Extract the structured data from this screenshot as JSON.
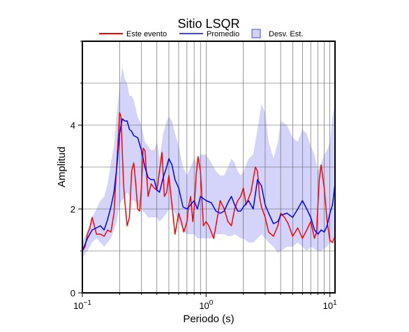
{
  "chart_data": {
    "type": "line",
    "title": "Sitio LSQR",
    "xlabel": "Periodo (s)",
    "ylabel": "Amplitud",
    "xscale": "log",
    "xlim": [
      0.1,
      11
    ],
    "ylim": [
      0,
      6
    ],
    "x_ticks": [
      {
        "value": 0.1,
        "base": "10",
        "exp": "−1"
      },
      {
        "value": 1,
        "base": "10",
        "exp": "0"
      },
      {
        "value": 10,
        "base": "10",
        "exp": "1"
      }
    ],
    "y_ticks": [
      {
        "value": 0,
        "label": "0"
      },
      {
        "value": 2,
        "label": "2"
      },
      {
        "value": 4,
        "label": "4"
      }
    ],
    "grid": true,
    "legend_position": "top",
    "colors": {
      "evento": "#ff0000",
      "promedio": "#0000ff",
      "desv": "#d4d4fa",
      "desv_edge": "#4646ff"
    },
    "series": [
      {
        "name": "Este evento",
        "kind": "line",
        "x": [
          0.1,
          0.105,
          0.11,
          0.115,
          0.12,
          0.125,
          0.13,
          0.14,
          0.15,
          0.16,
          0.17,
          0.18,
          0.19,
          0.2,
          0.205,
          0.21,
          0.215,
          0.22,
          0.23,
          0.24,
          0.25,
          0.26,
          0.27,
          0.28,
          0.29,
          0.3,
          0.31,
          0.32,
          0.34,
          0.36,
          0.38,
          0.4,
          0.42,
          0.44,
          0.46,
          0.48,
          0.5,
          0.53,
          0.56,
          0.6,
          0.63,
          0.66,
          0.7,
          0.72,
          0.75,
          0.78,
          0.8,
          0.83,
          0.86,
          0.9,
          0.95,
          1.0,
          1.05,
          1.1,
          1.15,
          1.2,
          1.3,
          1.4,
          1.5,
          1.6,
          1.7,
          1.8,
          1.9,
          2.0,
          2.1,
          2.3,
          2.5,
          2.6,
          2.7,
          2.8,
          3.0,
          3.2,
          3.5,
          3.8,
          4.0,
          4.3,
          4.6,
          5.0,
          5.5,
          6.0,
          6.5,
          7.0,
          7.5,
          7.8,
          8.2,
          8.5,
          9.0,
          9.5,
          10.0,
          10.5,
          11.0
        ],
        "y": [
          1.0,
          1.1,
          1.4,
          1.55,
          1.8,
          1.6,
          1.4,
          1.4,
          1.35,
          1.5,
          1.45,
          1.9,
          3.1,
          4.3,
          4.2,
          3.4,
          2.6,
          2.2,
          1.6,
          1.8,
          2.9,
          3.1,
          2.6,
          2.0,
          1.95,
          2.5,
          3.45,
          3.4,
          2.3,
          2.6,
          2.5,
          2.45,
          2.9,
          3.35,
          2.3,
          2.4,
          2.8,
          2.1,
          1.4,
          1.9,
          1.7,
          1.45,
          1.7,
          2.05,
          2.3,
          1.7,
          2.0,
          2.8,
          3.25,
          2.9,
          1.6,
          1.7,
          1.6,
          1.45,
          1.3,
          1.6,
          2.2,
          2.0,
          1.7,
          1.6,
          2.0,
          2.2,
          2.3,
          2.5,
          2.1,
          2.4,
          3.0,
          2.9,
          2.3,
          2.05,
          1.8,
          1.45,
          1.35,
          1.6,
          1.9,
          1.8,
          1.65,
          1.35,
          1.55,
          1.3,
          1.5,
          1.7,
          1.3,
          1.45,
          2.7,
          3.05,
          2.5,
          1.7,
          1.25,
          1.2,
          1.35
        ]
      },
      {
        "name": "Promedio",
        "kind": "line",
        "x": [
          0.1,
          0.11,
          0.12,
          0.13,
          0.14,
          0.15,
          0.16,
          0.17,
          0.18,
          0.19,
          0.2,
          0.21,
          0.22,
          0.23,
          0.24,
          0.25,
          0.26,
          0.28,
          0.3,
          0.32,
          0.34,
          0.36,
          0.38,
          0.4,
          0.42,
          0.45,
          0.48,
          0.5,
          0.53,
          0.56,
          0.6,
          0.65,
          0.7,
          0.75,
          0.8,
          0.85,
          0.9,
          1.0,
          1.1,
          1.2,
          1.3,
          1.4,
          1.5,
          1.6,
          1.7,
          1.8,
          1.9,
          2.0,
          2.2,
          2.4,
          2.6,
          2.8,
          3.0,
          3.2,
          3.5,
          3.8,
          4.0,
          4.5,
          5.0,
          5.5,
          6.0,
          6.5,
          7.0,
          7.5,
          8.0,
          8.5,
          9.0,
          9.5,
          10.0,
          10.5,
          11.0
        ],
        "y": [
          1.0,
          1.3,
          1.5,
          1.55,
          1.6,
          1.5,
          1.75,
          2.05,
          2.4,
          3.0,
          3.8,
          4.15,
          4.1,
          4.1,
          3.9,
          3.85,
          3.75,
          3.7,
          3.4,
          3.0,
          2.75,
          2.7,
          2.7,
          2.45,
          2.4,
          2.75,
          3.0,
          3.2,
          3.05,
          2.7,
          2.5,
          2.05,
          2.0,
          2.1,
          2.2,
          2.0,
          2.3,
          2.2,
          2.15,
          1.95,
          1.9,
          1.95,
          2.15,
          2.3,
          2.1,
          1.95,
          1.95,
          2.05,
          2.2,
          2.0,
          2.7,
          2.55,
          2.1,
          1.9,
          1.65,
          1.7,
          1.85,
          1.9,
          1.8,
          2.0,
          2.2,
          2.0,
          1.8,
          1.5,
          1.4,
          1.5,
          1.45,
          1.6,
          1.9,
          2.1,
          2.6
        ]
      },
      {
        "name": "Desv. Est.",
        "kind": "band",
        "x": [
          0.1,
          0.11,
          0.12,
          0.13,
          0.14,
          0.15,
          0.16,
          0.17,
          0.18,
          0.19,
          0.2,
          0.21,
          0.22,
          0.23,
          0.24,
          0.25,
          0.26,
          0.28,
          0.3,
          0.32,
          0.34,
          0.36,
          0.38,
          0.4,
          0.42,
          0.45,
          0.48,
          0.5,
          0.53,
          0.56,
          0.6,
          0.65,
          0.7,
          0.75,
          0.8,
          0.85,
          0.9,
          1.0,
          1.1,
          1.2,
          1.3,
          1.4,
          1.5,
          1.6,
          1.7,
          1.8,
          1.9,
          2.0,
          2.2,
          2.4,
          2.6,
          2.8,
          3.0,
          3.2,
          3.5,
          3.8,
          4.0,
          4.5,
          5.0,
          5.5,
          6.0,
          6.5,
          7.0,
          7.5,
          8.0,
          8.5,
          9.0,
          9.5,
          10.0,
          10.5,
          11.0
        ],
        "upper": [
          1.2,
          1.5,
          1.8,
          2.0,
          2.2,
          2.3,
          2.6,
          3.1,
          3.5,
          4.3,
          4.9,
          5.4,
          5.1,
          5.0,
          4.7,
          4.7,
          4.6,
          4.2,
          4.0,
          3.6,
          3.5,
          3.4,
          3.4,
          3.6,
          3.2,
          3.8,
          4.1,
          4.2,
          4.1,
          3.8,
          3.5,
          3.0,
          2.8,
          3.0,
          3.2,
          3.1,
          3.3,
          3.3,
          3.1,
          2.9,
          2.8,
          2.8,
          3.0,
          3.2,
          3.1,
          2.9,
          2.8,
          2.9,
          3.2,
          3.3,
          3.9,
          4.5,
          4.3,
          3.6,
          3.2,
          3.6,
          4.1,
          4.0,
          3.7,
          3.6,
          3.9,
          3.8,
          3.5,
          3.3,
          2.9,
          3.1,
          3.3,
          3.4,
          3.6,
          4.2,
          4.5
        ],
        "lower": [
          0.85,
          1.0,
          1.2,
          1.3,
          1.2,
          1.1,
          1.2,
          1.3,
          1.5,
          1.7,
          2.1,
          2.2,
          2.3,
          2.4,
          2.3,
          2.2,
          2.2,
          2.1,
          2.0,
          1.9,
          1.8,
          1.8,
          1.8,
          1.8,
          1.7,
          1.8,
          1.9,
          2.0,
          2.0,
          1.9,
          1.7,
          1.5,
          1.4,
          1.4,
          1.4,
          1.3,
          1.3,
          1.3,
          1.3,
          1.4,
          1.4,
          1.4,
          1.35,
          1.35,
          1.4,
          1.35,
          1.3,
          1.3,
          1.2,
          1.2,
          1.3,
          1.4,
          1.3,
          1.2,
          1.1,
          0.95,
          1.0,
          1.1,
          1.1,
          1.2,
          1.1,
          1.0,
          1.1,
          1.05,
          1.0,
          1.0,
          1.05,
          1.1,
          1.2,
          1.2,
          1.3
        ]
      }
    ]
  }
}
